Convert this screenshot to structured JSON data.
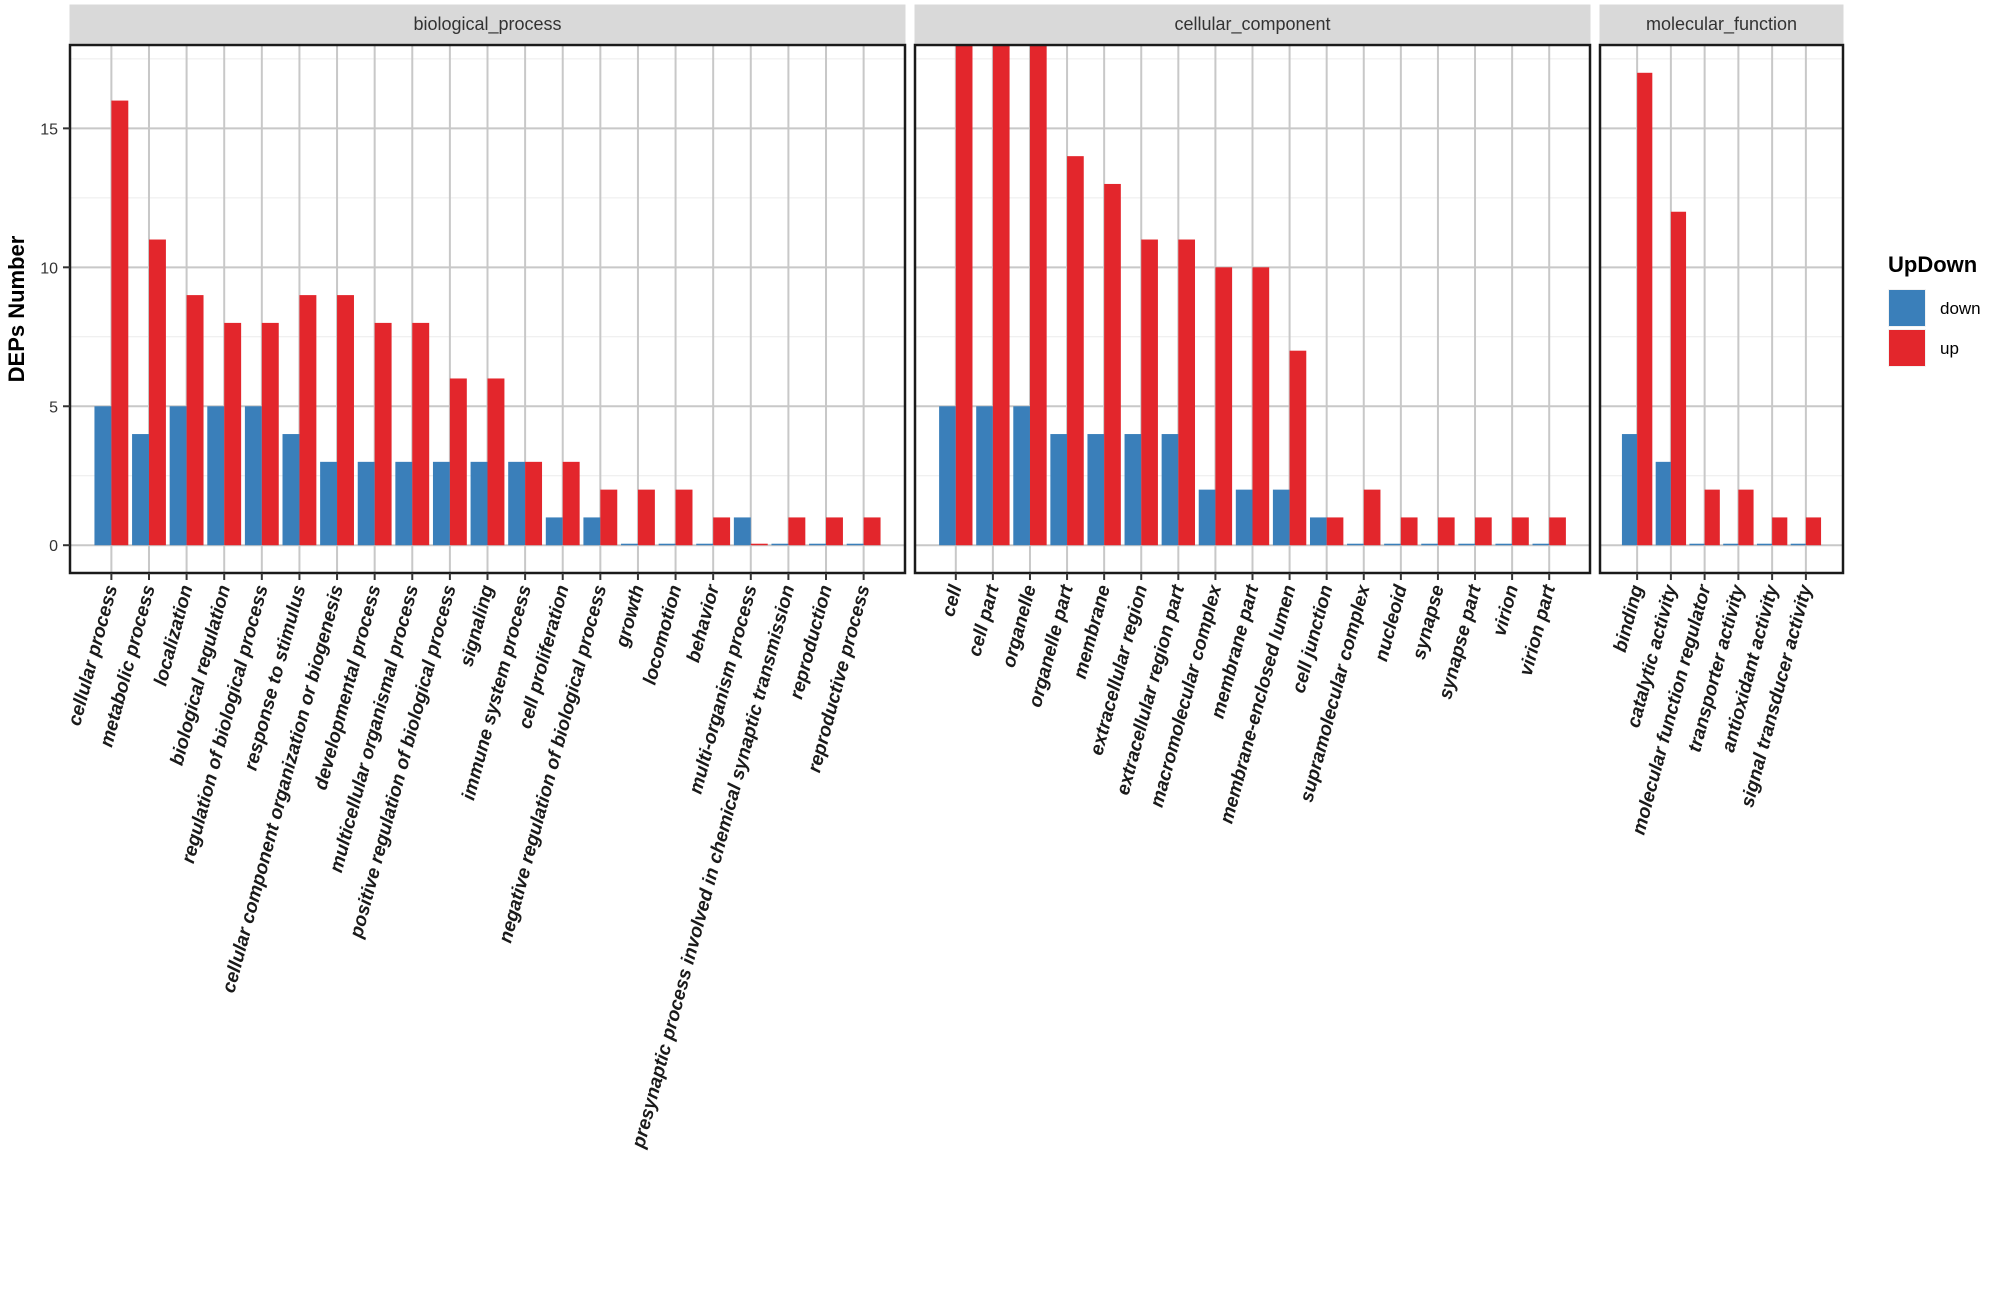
{
  "chart_data": {
    "type": "bar",
    "ylabel": "DEPs Number",
    "ylim": [
      -1,
      18
    ],
    "yticks": [
      0,
      5,
      10,
      15
    ],
    "legend": {
      "title": "UpDown",
      "position": "right",
      "entries": [
        {
          "name": "down",
          "color": "#3a7fba"
        },
        {
          "name": "up",
          "color": "#e3262c"
        }
      ]
    },
    "panels": [
      {
        "title": "biological_process",
        "categories": [
          "cellular process",
          "metabolic process",
          "localization",
          "biological regulation",
          "regulation of biological process",
          "response to stimulus",
          "cellular component organization or biogenesis",
          "developmental process",
          "multicellular organismal process",
          "positive regulation of biological process",
          "signaling",
          "immune system process",
          "cell proliferation",
          "negative regulation of biological process",
          "growth",
          "locomotion",
          "behavior",
          "multi-organism process",
          "presynaptic process involved in chemical synaptic transmission",
          "reproduction",
          "reproductive process"
        ],
        "series": [
          {
            "name": "down",
            "values": [
              5,
              4,
              5,
              5,
              5,
              4,
              3,
              3,
              3,
              3,
              3,
              3,
              1,
              1,
              0,
              0,
              0,
              1,
              0,
              0,
              0
            ]
          },
          {
            "name": "up",
            "values": [
              16,
              11,
              9,
              8,
              8,
              9,
              9,
              8,
              8,
              6,
              6,
              3,
              3,
              2,
              2,
              2,
              1,
              0,
              1,
              1,
              1
            ]
          }
        ]
      },
      {
        "title": "cellular_component",
        "categories": [
          "cell",
          "cell part",
          "organelle",
          "organelle part",
          "membrane",
          "extracellular region",
          "extracellular region part",
          "macromolecular complex",
          "membrane part",
          "membrane-enclosed lumen",
          "cell junction",
          "supramolecular complex",
          "nucleoid",
          "synapse",
          "synapse part",
          "virion",
          "virion part"
        ],
        "series": [
          {
            "name": "down",
            "values": [
              5,
              5,
              5,
              4,
              4,
              4,
              4,
              2,
              2,
              2,
              1,
              0,
              0,
              0,
              0,
              0,
              0
            ]
          },
          {
            "name": "up",
            "values": [
              18,
              18,
              18,
              14,
              13,
              11,
              11,
              10,
              10,
              7,
              1,
              2,
              1,
              1,
              1,
              1,
              1
            ]
          }
        ]
      },
      {
        "title": "molecular_function",
        "categories": [
          "binding",
          "catalytic activity",
          "molecular function regulator",
          "transporter activity",
          "antioxidant activity",
          "signal transducer activity"
        ],
        "series": [
          {
            "name": "down",
            "values": [
              4,
              3,
              0,
              0,
              0,
              0
            ]
          },
          {
            "name": "up",
            "values": [
              17,
              12,
              2,
              2,
              1,
              1
            ]
          }
        ]
      }
    ]
  }
}
